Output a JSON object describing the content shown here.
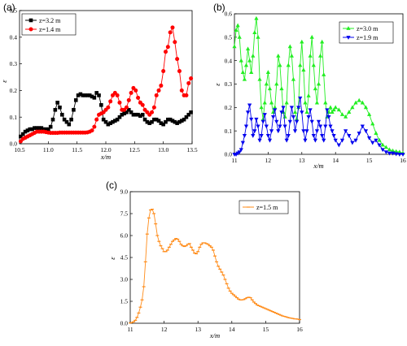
{
  "panels": [
    {
      "label": "(a)",
      "chart_data": {
        "type": "line",
        "title": "",
        "xlabel": "x/m",
        "ylabel": "ε",
        "xlim": [
          10.5,
          13.5
        ],
        "ylim": [
          0,
          0.55
        ],
        "xticks": [
          "10.5",
          "11.0",
          "11.5",
          "12.0",
          "12.5",
          "13.0",
          "13.5"
        ],
        "yticks": [
          "0.0",
          "0.1",
          "0.2",
          "0.3",
          "0.4",
          "0.5"
        ],
        "grid": false,
        "legend_position": "top-left",
        "series": [
          {
            "name": "z=3.2 m",
            "color": "#000000",
            "marker": "square",
            "x": [
              10.52,
              10.56,
              10.6,
              10.64,
              10.68,
              10.72,
              10.76,
              10.8,
              10.84,
              10.88,
              10.92,
              10.96,
              11.0,
              11.04,
              11.08,
              11.12,
              11.16,
              11.2,
              11.24,
              11.28,
              11.32,
              11.36,
              11.4,
              11.44,
              11.48,
              11.52,
              11.56,
              11.6,
              11.64,
              11.68,
              11.72,
              11.76,
              11.8,
              11.84,
              11.88,
              11.92,
              11.96,
              12.0,
              12.04,
              12.08,
              12.12,
              12.16,
              12.2,
              12.24,
              12.28,
              12.32,
              12.36,
              12.4,
              12.44,
              12.48,
              12.52,
              12.56,
              12.6,
              12.64,
              12.68,
              12.72,
              12.76,
              12.8,
              12.84,
              12.88,
              12.92,
              12.96,
              13.0,
              13.04,
              13.08,
              13.12,
              13.16,
              13.2,
              13.24,
              13.28,
              13.32,
              13.36,
              13.4,
              13.44,
              13.48
            ],
            "y": [
              0.03,
              0.04,
              0.05,
              0.055,
              0.06,
              0.06,
              0.065,
              0.065,
              0.065,
              0.065,
              0.06,
              0.06,
              0.06,
              0.07,
              0.1,
              0.14,
              0.17,
              0.15,
              0.12,
              0.1,
              0.09,
              0.08,
              0.1,
              0.14,
              0.18,
              0.2,
              0.205,
              0.2,
              0.2,
              0.2,
              0.2,
              0.195,
              0.19,
              0.21,
              0.2,
              0.16,
              0.1,
              0.09,
              0.08,
              0.085,
              0.09,
              0.095,
              0.1,
              0.11,
              0.12,
              0.125,
              0.13,
              0.14,
              0.13,
              0.12,
              0.12,
              0.12,
              0.115,
              0.12,
              0.1,
              0.09,
              0.085,
              0.09,
              0.1,
              0.1,
              0.095,
              0.085,
              0.08,
              0.09,
              0.1,
              0.1,
              0.095,
              0.09,
              0.085,
              0.09,
              0.095,
              0.1,
              0.11,
              0.12,
              0.13
            ]
          },
          {
            "name": "z=1.4 m",
            "color": "#ff0000",
            "marker": "circle",
            "x": [
              10.52,
              10.56,
              10.6,
              10.64,
              10.68,
              10.72,
              10.76,
              10.8,
              10.84,
              10.88,
              10.92,
              10.96,
              11.0,
              11.04,
              11.08,
              11.12,
              11.16,
              11.2,
              11.24,
              11.28,
              11.32,
              11.36,
              11.4,
              11.44,
              11.48,
              11.52,
              11.56,
              11.6,
              11.64,
              11.68,
              11.72,
              11.76,
              11.8,
              11.84,
              11.88,
              11.92,
              11.96,
              12.0,
              12.04,
              12.08,
              12.12,
              12.16,
              12.2,
              12.24,
              12.28,
              12.32,
              12.36,
              12.4,
              12.44,
              12.48,
              12.52,
              12.56,
              12.6,
              12.64,
              12.68,
              12.72,
              12.76,
              12.8,
              12.84,
              12.88,
              12.92,
              12.96,
              13.0,
              13.04,
              13.08,
              13.12,
              13.16,
              13.2,
              13.24,
              13.28,
              13.32,
              13.36,
              13.4,
              13.44,
              13.48
            ],
            "y": [
              0.01,
              0.02,
              0.025,
              0.03,
              0.035,
              0.04,
              0.045,
              0.05,
              0.05,
              0.05,
              0.05,
              0.048,
              0.046,
              0.045,
              0.045,
              0.045,
              0.045,
              0.046,
              0.046,
              0.046,
              0.046,
              0.046,
              0.046,
              0.046,
              0.046,
              0.046,
              0.046,
              0.046,
              0.046,
              0.047,
              0.05,
              0.055,
              0.07,
              0.1,
              0.12,
              0.125,
              0.13,
              0.14,
              0.15,
              0.175,
              0.2,
              0.21,
              0.2,
              0.17,
              0.14,
              0.14,
              0.15,
              0.18,
              0.21,
              0.23,
              0.22,
              0.19,
              0.17,
              0.16,
              0.14,
              0.13,
              0.12,
              0.13,
              0.15,
              0.2,
              0.22,
              0.24,
              0.3,
              0.38,
              0.4,
              0.46,
              0.48,
              0.42,
              0.35,
              0.3,
              0.22,
              0.2,
              0.2,
              0.25,
              0.27
            ]
          }
        ]
      }
    },
    {
      "label": "(b)",
      "chart_data": {
        "type": "line",
        "title": "",
        "xlabel": "x/m",
        "ylabel": "ε",
        "xlim": [
          11,
          16
        ],
        "ylim": [
          0,
          0.6
        ],
        "xticks": [
          "11",
          "12",
          "13",
          "14",
          "15",
          "16"
        ],
        "yticks": [
          "0.0",
          "0.1",
          "0.2",
          "0.3",
          "0.4",
          "0.5",
          "0.6"
        ],
        "grid": false,
        "legend_position": "top-right",
        "series": [
          {
            "name": "z=3.0 m",
            "color": "#22ee22",
            "marker": "triangle-up",
            "x": [
              11.0,
              11.05,
              11.1,
              11.15,
              11.2,
              11.25,
              11.3,
              11.35,
              11.4,
              11.45,
              11.5,
              11.55,
              11.6,
              11.65,
              11.7,
              11.75,
              11.8,
              11.85,
              11.9,
              11.95,
              12.0,
              12.05,
              12.1,
              12.15,
              12.2,
              12.25,
              12.3,
              12.35,
              12.4,
              12.45,
              12.5,
              12.55,
              12.6,
              12.65,
              12.7,
              12.75,
              12.8,
              12.85,
              12.9,
              12.95,
              13.0,
              13.05,
              13.1,
              13.15,
              13.2,
              13.25,
              13.3,
              13.35,
              13.4,
              13.45,
              13.5,
              13.55,
              13.6,
              13.65,
              13.7,
              13.75,
              13.8,
              13.85,
              13.9,
              13.95,
              14.0,
              14.1,
              14.2,
              14.3,
              14.4,
              14.5,
              14.6,
              14.7,
              14.8,
              14.9,
              15.0,
              15.1,
              15.2,
              15.3,
              15.4,
              15.5,
              15.6,
              15.7,
              15.8,
              15.9,
              16.0
            ],
            "y": [
              0.46,
              0.53,
              0.55,
              0.5,
              0.4,
              0.35,
              0.32,
              0.38,
              0.45,
              0.4,
              0.35,
              0.42,
              0.52,
              0.58,
              0.5,
              0.32,
              0.2,
              0.15,
              0.22,
              0.3,
              0.35,
              0.28,
              0.22,
              0.18,
              0.2,
              0.3,
              0.42,
              0.38,
              0.28,
              0.18,
              0.16,
              0.22,
              0.38,
              0.46,
              0.42,
              0.32,
              0.18,
              0.15,
              0.2,
              0.38,
              0.48,
              0.36,
              0.22,
              0.18,
              0.25,
              0.42,
              0.5,
              0.38,
              0.28,
              0.22,
              0.3,
              0.42,
              0.48,
              0.34,
              0.22,
              0.16,
              0.18,
              0.2,
              0.18,
              0.19,
              0.2,
              0.19,
              0.17,
              0.16,
              0.18,
              0.2,
              0.22,
              0.23,
              0.22,
              0.2,
              0.17,
              0.13,
              0.09,
              0.06,
              0.04,
              0.03,
              0.02,
              0.015,
              0.012,
              0.01,
              0.005
            ]
          },
          {
            "name": "z=1.9 m",
            "color": "#0000ee",
            "marker": "triangle-down",
            "x": [
              11.0,
              11.05,
              11.1,
              11.15,
              11.2,
              11.25,
              11.3,
              11.35,
              11.4,
              11.45,
              11.5,
              11.55,
              11.6,
              11.65,
              11.7,
              11.75,
              11.8,
              11.85,
              11.9,
              11.95,
              12.0,
              12.05,
              12.1,
              12.15,
              12.2,
              12.25,
              12.3,
              12.35,
              12.4,
              12.45,
              12.5,
              12.55,
              12.6,
              12.65,
              12.7,
              12.75,
              12.8,
              12.85,
              12.9,
              12.95,
              13.0,
              13.05,
              13.1,
              13.15,
              13.2,
              13.25,
              13.3,
              13.35,
              13.4,
              13.45,
              13.5,
              13.55,
              13.6,
              13.65,
              13.7,
              13.75,
              13.8,
              13.85,
              13.9,
              13.95,
              14.0,
              14.1,
              14.2,
              14.3,
              14.4,
              14.5,
              14.6,
              14.7,
              14.8,
              14.9,
              15.0,
              15.1,
              15.2,
              15.3,
              15.4,
              15.5,
              15.6,
              15.7,
              15.8,
              15.9,
              16.0
            ],
            "y": [
              0.0,
              0.0,
              0.005,
              0.01,
              0.02,
              0.05,
              0.08,
              0.12,
              0.18,
              0.21,
              0.15,
              0.08,
              0.1,
              0.15,
              0.12,
              0.06,
              0.08,
              0.14,
              0.17,
              0.12,
              0.08,
              0.06,
              0.1,
              0.16,
              0.19,
              0.14,
              0.1,
              0.12,
              0.18,
              0.2,
              0.12,
              0.06,
              0.08,
              0.14,
              0.2,
              0.16,
              0.1,
              0.14,
              0.2,
              0.24,
              0.18,
              0.1,
              0.06,
              0.1,
              0.16,
              0.19,
              0.14,
              0.08,
              0.06,
              0.1,
              0.14,
              0.12,
              0.08,
              0.06,
              0.12,
              0.19,
              0.16,
              0.12,
              0.1,
              0.08,
              0.06,
              0.04,
              0.06,
              0.1,
              0.08,
              0.05,
              0.06,
              0.09,
              0.12,
              0.1,
              0.07,
              0.05,
              0.06,
              0.04,
              0.02,
              0.01,
              0.005,
              0.005,
              0.002,
              0.0,
              0.0
            ]
          }
        ]
      }
    },
    {
      "label": "(c)",
      "chart_data": {
        "type": "line",
        "title": "",
        "xlabel": "x/m",
        "ylabel": "ε",
        "xlim": [
          11,
          16
        ],
        "ylim": [
          0,
          9
        ],
        "xticks": [
          "11",
          "12",
          "13",
          "14",
          "15",
          "16"
        ],
        "yticks": [
          "0.0",
          "1.5",
          "3.0",
          "4.5",
          "6.0",
          "7.5",
          "9.0"
        ],
        "grid": false,
        "legend_position": "top-right",
        "series": [
          {
            "name": "z=1.5 m",
            "color": "#ff8c1a",
            "marker": "dash",
            "x": [
              11.0,
              11.05,
              11.1,
              11.15,
              11.2,
              11.25,
              11.3,
              11.35,
              11.4,
              11.45,
              11.5,
              11.55,
              11.6,
              11.65,
              11.7,
              11.75,
              11.8,
              11.85,
              11.9,
              11.95,
              12.0,
              12.05,
              12.1,
              12.15,
              12.2,
              12.25,
              12.3,
              12.35,
              12.4,
              12.45,
              12.5,
              12.55,
              12.6,
              12.65,
              12.7,
              12.75,
              12.8,
              12.85,
              12.9,
              12.95,
              13.0,
              13.05,
              13.1,
              13.15,
              13.2,
              13.25,
              13.3,
              13.35,
              13.4,
              13.45,
              13.5,
              13.55,
              13.6,
              13.65,
              13.7,
              13.75,
              13.8,
              13.85,
              13.9,
              13.95,
              14.0,
              14.05,
              14.1,
              14.15,
              14.2,
              14.25,
              14.3,
              14.35,
              14.4,
              14.45,
              14.5,
              14.55,
              14.6,
              14.65,
              14.7,
              14.75,
              14.8,
              14.85,
              14.9,
              14.95,
              15.0,
              15.05,
              15.1,
              15.15,
              15.2,
              15.25,
              15.3,
              15.35,
              15.4,
              15.45,
              15.5,
              15.55,
              15.6,
              15.65,
              15.7,
              15.75,
              15.8,
              15.85,
              15.9,
              15.95,
              16.0
            ],
            "y": [
              0.02,
              0.05,
              0.1,
              0.2,
              0.4,
              0.7,
              1.1,
              1.6,
              2.5,
              4.2,
              6.1,
              7.2,
              7.75,
              7.8,
              7.5,
              6.8,
              6.0,
              5.6,
              5.3,
              5.1,
              4.9,
              4.9,
              5.0,
              5.2,
              5.4,
              5.6,
              5.7,
              5.8,
              5.75,
              5.6,
              5.4,
              5.3,
              5.25,
              5.3,
              5.4,
              5.45,
              5.2,
              5.0,
              4.8,
              4.75,
              4.9,
              5.2,
              5.4,
              5.5,
              5.5,
              5.45,
              5.4,
              5.3,
              5.2,
              5.0,
              4.6,
              4.2,
              3.9,
              3.7,
              3.5,
              3.3,
              3.0,
              2.7,
              2.4,
              2.2,
              2.05,
              1.95,
              1.85,
              1.75,
              1.65,
              1.6,
              1.6,
              1.62,
              1.68,
              1.75,
              1.78,
              1.75,
              1.6,
              1.45,
              1.35,
              1.25,
              1.2,
              1.15,
              1.1,
              1.05,
              1.0,
              0.95,
              0.9,
              0.85,
              0.8,
              0.75,
              0.7,
              0.65,
              0.6,
              0.55,
              0.5,
              0.47,
              0.44,
              0.4,
              0.37,
              0.35,
              0.33,
              0.3,
              0.3,
              0.28,
              0.25
            ]
          }
        ]
      }
    }
  ]
}
